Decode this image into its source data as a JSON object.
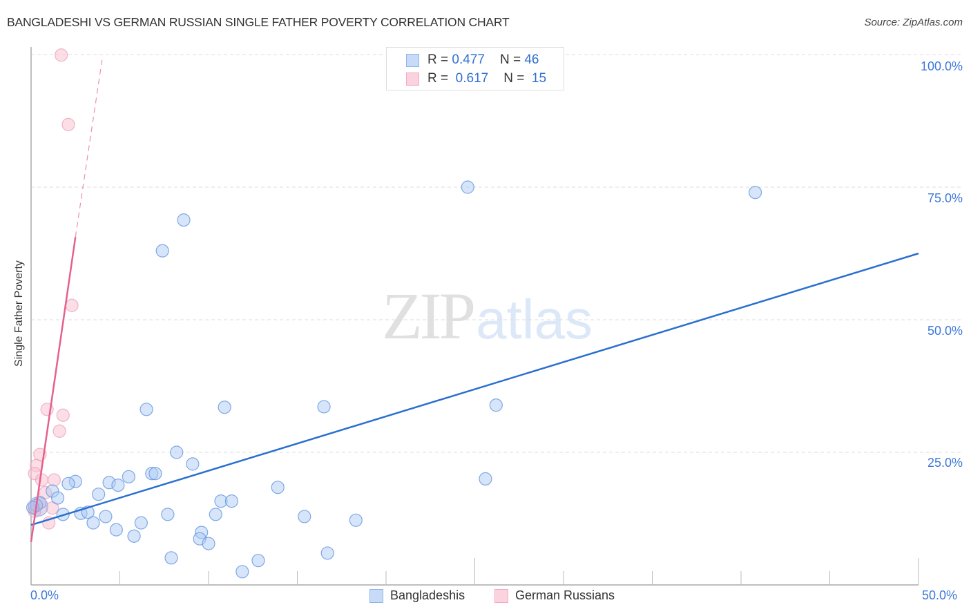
{
  "header": {
    "title": "BANGLADESHI VS GERMAN RUSSIAN SINGLE FATHER POVERTY CORRELATION CHART",
    "source": "Source: ZipAtlas.com"
  },
  "legend_top": {
    "rows": [
      {
        "r_label": "R =",
        "r_value": "0.477",
        "n_label": "N =",
        "n_value": "46",
        "color": "#aecbf5"
      },
      {
        "r_label": "R =",
        "r_value": "0.617",
        "n_label": "N =",
        "n_value": "15",
        "color": "#f9c3d3"
      }
    ]
  },
  "legend_bottom": {
    "items": [
      {
        "label": "Bangladeshis",
        "color": "#aecbf5"
      },
      {
        "label": "German Russians",
        "color": "#f9c3d3"
      }
    ]
  },
  "axes": {
    "ylabel": "Single Father Poverty",
    "x_min_label": "0.0%",
    "x_max_label": "50.0%",
    "y_ticks": [
      "100.0%",
      "75.0%",
      "50.0%",
      "25.0%"
    ]
  },
  "watermark": {
    "zip": "ZIP",
    "atlas": "atlas"
  },
  "chart_data": {
    "type": "scatter",
    "title": "BANGLADESHI VS GERMAN RUSSIAN SINGLE FATHER POVERTY CORRELATION CHART",
    "xlabel": "",
    "ylabel": "Single Father Poverty",
    "xlim": [
      0,
      50
    ],
    "ylim": [
      0,
      100
    ],
    "x_tick_labels": [
      "0.0%",
      "50.0%"
    ],
    "y_tick_labels": [
      "25.0%",
      "50.0%",
      "75.0%",
      "100.0%"
    ],
    "grid": true,
    "legend_position": "top-center and bottom",
    "series": [
      {
        "name": "Bangladeshis",
        "color": "#5b8fd9",
        "fill": "#aecbf5",
        "r": 0.477,
        "n": 46,
        "trend": {
          "x": [
            0,
            50
          ],
          "y": [
            11.3,
            62.5
          ]
        },
        "points": [
          [
            24.6,
            75.0
          ],
          [
            40.8,
            74.0
          ],
          [
            8.6,
            68.8
          ],
          [
            7.4,
            63.0
          ],
          [
            6.5,
            33.1
          ],
          [
            10.9,
            33.5
          ],
          [
            16.5,
            33.6
          ],
          [
            26.2,
            33.9
          ],
          [
            8.2,
            25.0
          ],
          [
            9.1,
            22.8
          ],
          [
            2.5,
            19.5
          ],
          [
            4.4,
            19.3
          ],
          [
            5.5,
            20.4
          ],
          [
            4.9,
            18.8
          ],
          [
            6.8,
            21.0
          ],
          [
            7.0,
            21.0
          ],
          [
            25.6,
            20.0
          ],
          [
            13.9,
            18.4
          ],
          [
            2.1,
            19.1
          ],
          [
            1.2,
            17.7
          ],
          [
            1.5,
            16.4
          ],
          [
            3.8,
            17.1
          ],
          [
            0.5,
            15.5
          ],
          [
            10.7,
            15.8
          ],
          [
            11.3,
            15.8
          ],
          [
            1.8,
            13.3
          ],
          [
            2.8,
            13.5
          ],
          [
            3.2,
            13.7
          ],
          [
            4.2,
            12.9
          ],
          [
            7.7,
            13.3
          ],
          [
            10.4,
            13.3
          ],
          [
            15.4,
            12.9
          ],
          [
            18.3,
            12.2
          ],
          [
            3.5,
            11.7
          ],
          [
            6.2,
            11.7
          ],
          [
            4.8,
            10.4
          ],
          [
            9.6,
            9.9
          ],
          [
            5.8,
            9.2
          ],
          [
            9.5,
            8.7
          ],
          [
            10.0,
            7.8
          ],
          [
            16.7,
            6.0
          ],
          [
            7.9,
            5.1
          ],
          [
            12.8,
            4.6
          ],
          [
            11.9,
            2.5
          ],
          [
            0.3,
            15.0
          ],
          [
            0.1,
            14.6
          ]
        ]
      },
      {
        "name": "German Russians",
        "color": "#e5608e",
        "fill": "#f9c3d3",
        "r": 0.617,
        "n": 15,
        "trend": {
          "x": [
            0,
            2.5
          ],
          "y": [
            8.1,
            65.6
          ],
          "dashed_extension": {
            "x": [
              2.5,
              4.0
            ],
            "y": [
              65.6,
              99.0
            ]
          }
        },
        "points": [
          [
            1.7,
            99.9
          ],
          [
            2.1,
            86.8
          ],
          [
            2.3,
            52.7
          ],
          [
            0.9,
            33.1
          ],
          [
            1.8,
            32.0
          ],
          [
            1.6,
            29.0
          ],
          [
            0.5,
            24.6
          ],
          [
            0.3,
            22.5
          ],
          [
            0.2,
            21.0
          ],
          [
            0.6,
            19.8
          ],
          [
            1.3,
            19.8
          ],
          [
            0.8,
            17.4
          ],
          [
            1.2,
            14.5
          ],
          [
            0.2,
            13.9
          ],
          [
            1.0,
            11.7
          ]
        ]
      }
    ]
  }
}
